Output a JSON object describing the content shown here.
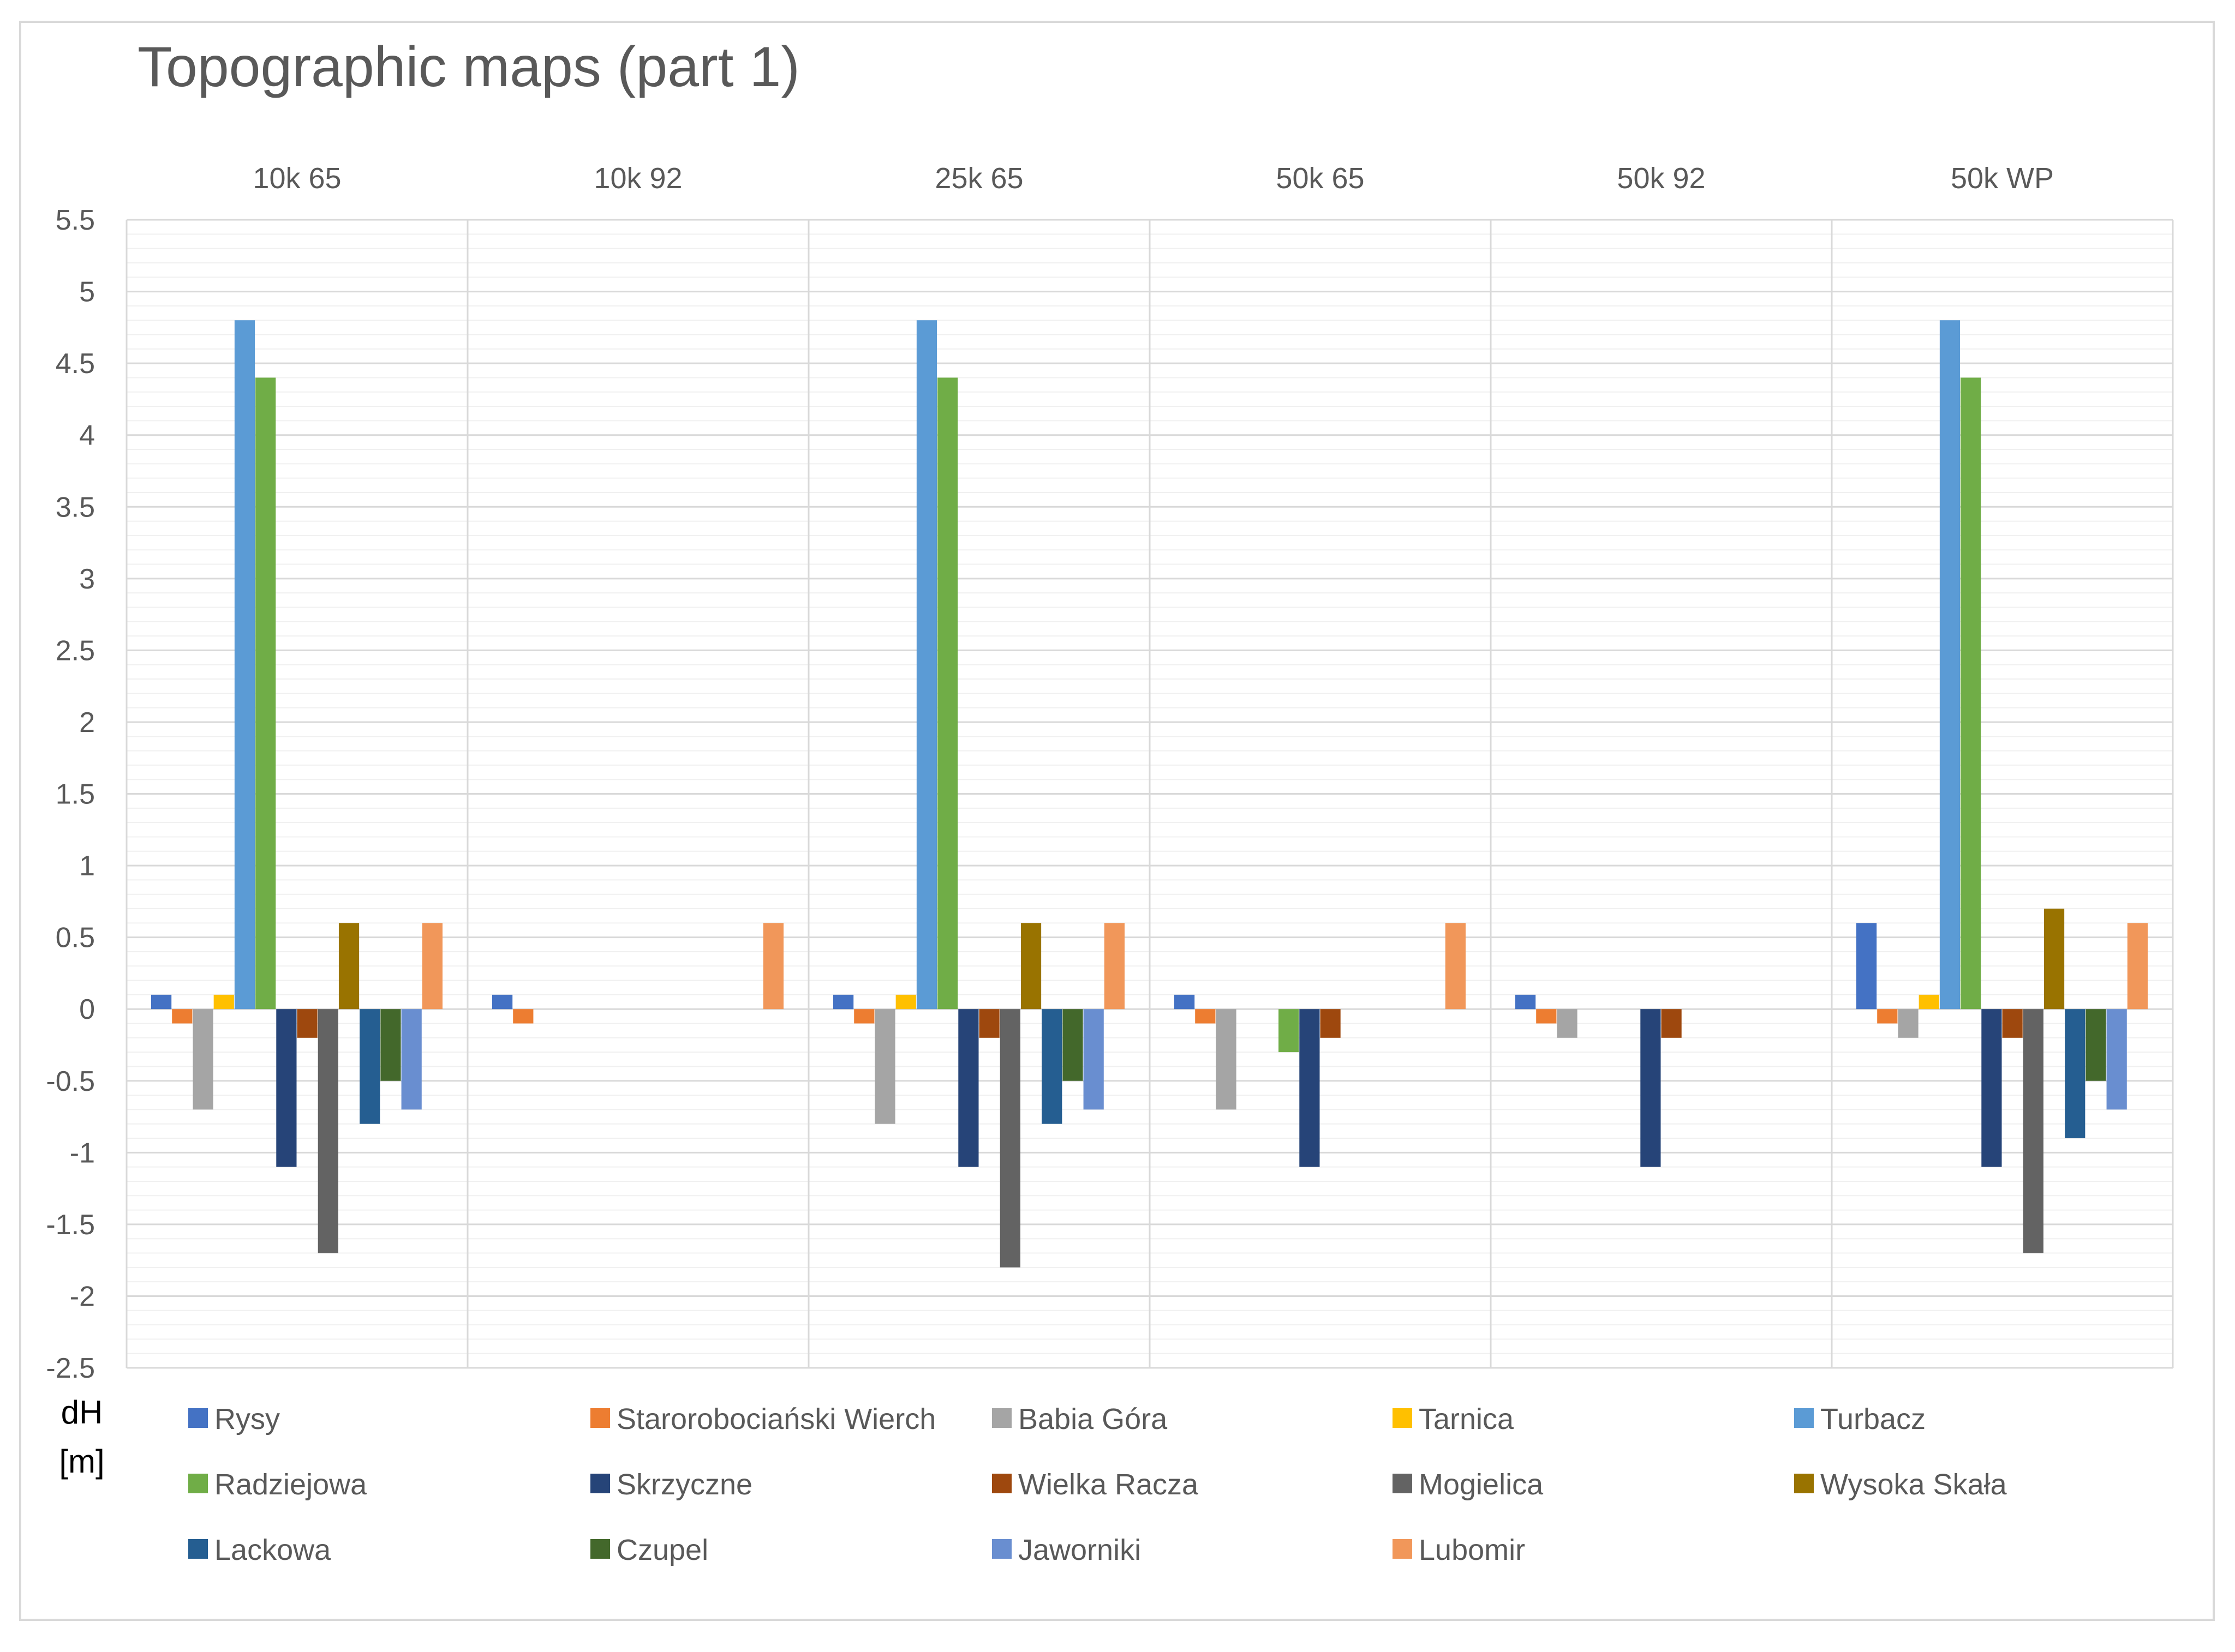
{
  "chart_data": {
    "type": "bar",
    "title": "Topographic maps (part 1)",
    "xlabel": "",
    "ylabel": "dH [m]",
    "ylabel_lines": [
      "dH",
      "[m]"
    ],
    "ylim": [
      -2.5,
      5.5
    ],
    "ytick_step": 0.5,
    "yticks": [
      "5.5",
      "5",
      "4.5",
      "4",
      "3.5",
      "3",
      "2.5",
      "2",
      "1.5",
      "1",
      "0.5",
      "0",
      "-0.5",
      "-1",
      "-1.5",
      "-2",
      "-2.5"
    ],
    "minor_grid_step": 0.1,
    "grid": true,
    "legend_position": "bottom",
    "categories": [
      "10k 65",
      "10k 92",
      "25k 65",
      "50k 65",
      "50k 92",
      "50k WP"
    ],
    "series": [
      {
        "name": "Rysy",
        "color": "#4472C4",
        "values": [
          0.1,
          0.1,
          0.1,
          0.1,
          0.1,
          0.6
        ]
      },
      {
        "name": "Starorobociański Wierch",
        "color": "#ED7D31",
        "values": [
          -0.1,
          -0.1,
          -0.1,
          -0.1,
          -0.1,
          -0.1
        ]
      },
      {
        "name": "Babia Góra",
        "color": "#A5A5A5",
        "values": [
          -0.7,
          null,
          -0.8,
          -0.7,
          -0.2,
          -0.2
        ]
      },
      {
        "name": "Tarnica",
        "color": "#FFC000",
        "values": [
          0.1,
          null,
          0.1,
          null,
          null,
          0.1
        ]
      },
      {
        "name": "Turbacz",
        "color": "#5B9BD5",
        "values": [
          4.8,
          null,
          4.8,
          null,
          null,
          4.8
        ]
      },
      {
        "name": "Radziejowa",
        "color": "#70AD47",
        "values": [
          4.4,
          null,
          4.4,
          -0.3,
          null,
          4.4
        ]
      },
      {
        "name": "Skrzyczne",
        "color": "#264478",
        "values": [
          -1.1,
          null,
          -1.1,
          -1.1,
          -1.1,
          -1.1
        ]
      },
      {
        "name": "Wielka Racza",
        "color": "#9E480E",
        "values": [
          -0.2,
          null,
          -0.2,
          -0.2,
          -0.2,
          -0.2
        ]
      },
      {
        "name": "Mogielica",
        "color": "#636363",
        "values": [
          -1.7,
          null,
          -1.8,
          null,
          null,
          -1.7
        ]
      },
      {
        "name": "Wysoka Skała",
        "color": "#997300",
        "values": [
          0.6,
          null,
          0.6,
          null,
          null,
          0.7
        ]
      },
      {
        "name": "Lackowa",
        "color": "#255E91",
        "values": [
          -0.8,
          null,
          -0.8,
          null,
          null,
          -0.9
        ]
      },
      {
        "name": "Czupel",
        "color": "#43682B",
        "values": [
          -0.5,
          null,
          -0.5,
          null,
          null,
          -0.5
        ]
      },
      {
        "name": "Jaworniki",
        "color": "#698ED0",
        "values": [
          -0.7,
          null,
          -0.7,
          null,
          null,
          -0.7
        ]
      },
      {
        "name": "Lubomir",
        "color": "#F1975A",
        "values": [
          0.6,
          0.6,
          0.6,
          0.6,
          null,
          0.6
        ]
      }
    ],
    "colors": {
      "title": "#595959",
      "tick": "#595959",
      "legend_text": "#595959",
      "major_grid": "#d9d9d9",
      "minor_grid": "#f0f0f0",
      "panel_border": "#d9d9d9",
      "outer_border": "#d9d9d9"
    }
  }
}
